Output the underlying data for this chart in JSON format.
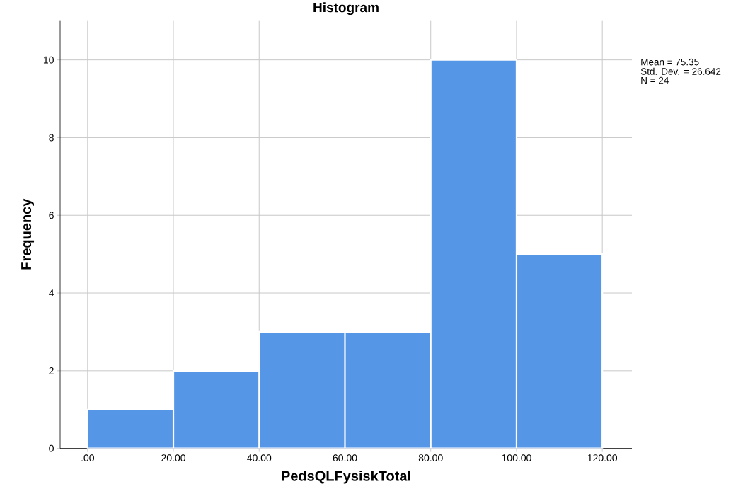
{
  "chart_data": {
    "type": "histogram",
    "title": "Histogram",
    "xlabel": "PedsQLFysiskTotal",
    "ylabel": "Frequency",
    "bins": [
      0,
      20,
      40,
      60,
      80,
      100,
      120
    ],
    "values": [
      1,
      2,
      3,
      3,
      10,
      5
    ],
    "color": "#5596e6",
    "xlim": [
      -6.4,
      126.9
    ],
    "ylim": [
      0,
      11.02
    ],
    "xticks": [
      {
        "value": 0,
        "label": ".00"
      },
      {
        "value": 20,
        "label": "20.00"
      },
      {
        "value": 40,
        "label": "40.00"
      },
      {
        "value": 60,
        "label": "60.00"
      },
      {
        "value": 80,
        "label": "80.00"
      },
      {
        "value": 100,
        "label": "100.00"
      },
      {
        "value": 120,
        "label": "120.00"
      }
    ],
    "yticks": [
      0,
      2,
      4,
      6,
      8,
      10
    ],
    "grid": true,
    "annotations": [
      "Mean = 75.35",
      "Std. Dev. = 26.642",
      "N = 24"
    ]
  }
}
